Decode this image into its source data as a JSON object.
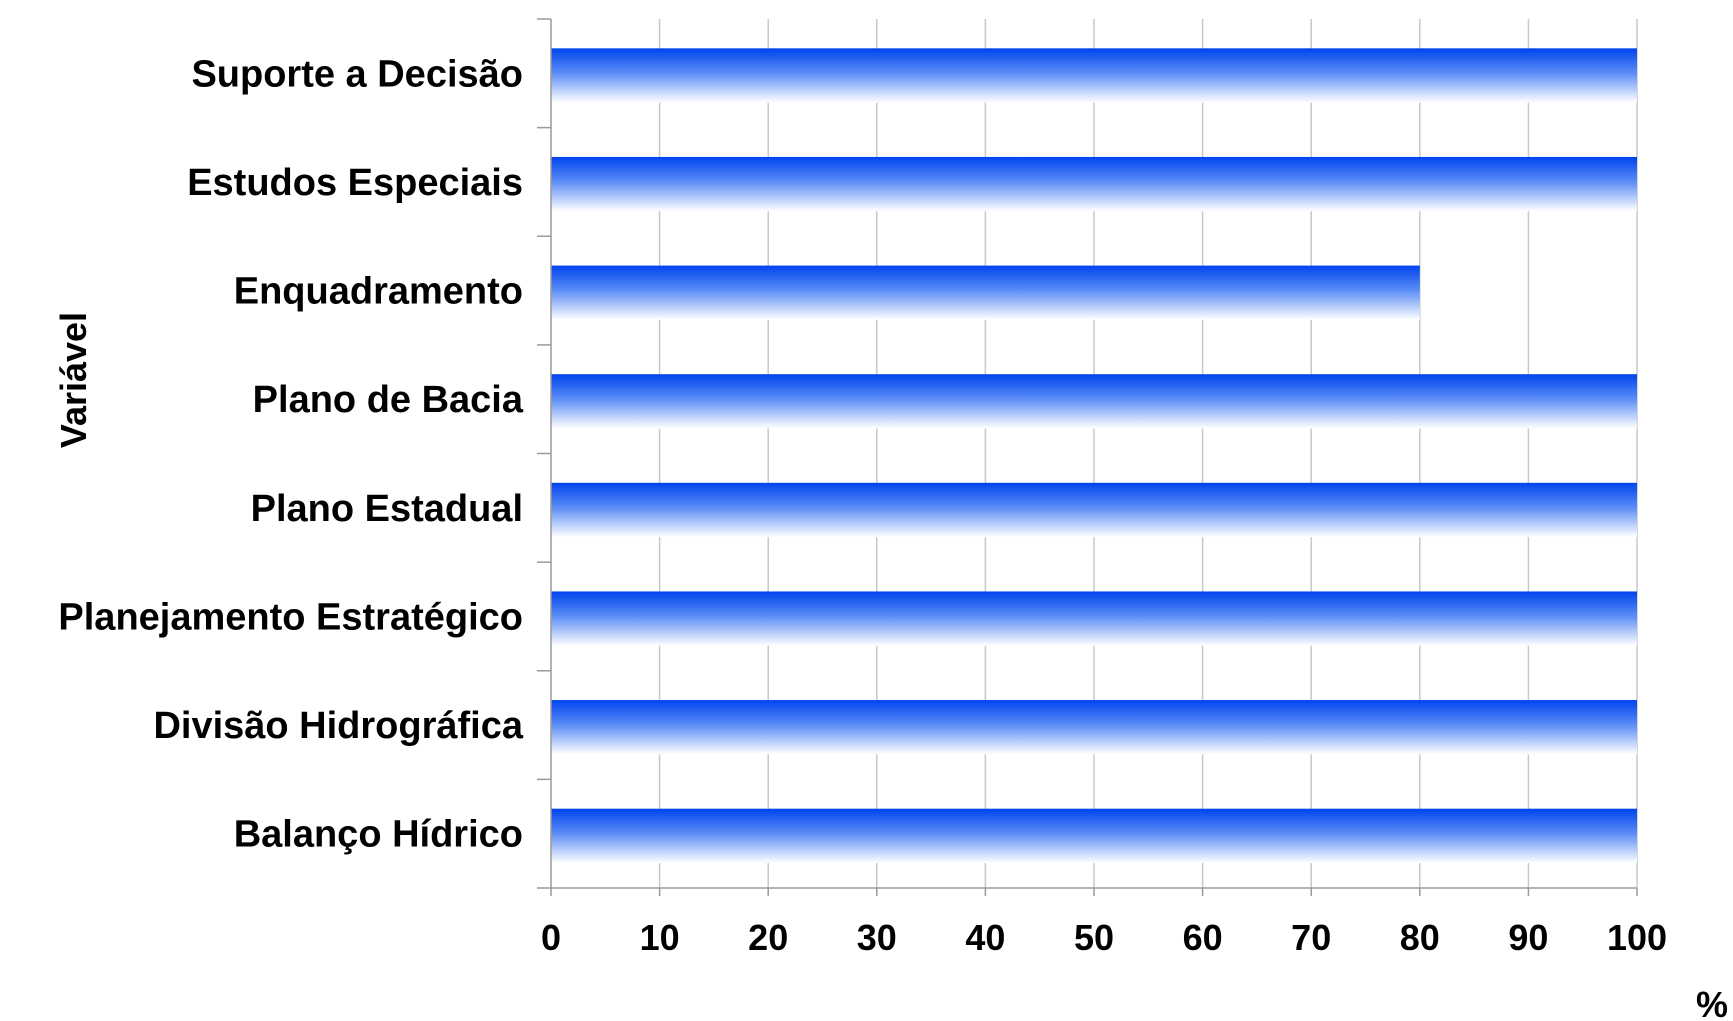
{
  "chart_data": {
    "type": "bar",
    "orientation": "horizontal",
    "categories": [
      "Suporte a Decisão",
      "Estudos Especiais",
      "Enquadramento",
      "Plano de Bacia",
      "Plano Estadual",
      "Planejamento Estratégico",
      "Divisão Hidrográfica",
      "Balanço Hídrico"
    ],
    "values": [
      100,
      100,
      80,
      100,
      100,
      100,
      100,
      100
    ],
    "xlabel": "%",
    "ylabel": "Variável",
    "xlim": [
      0,
      100
    ],
    "xticks": [
      0,
      10,
      20,
      30,
      40,
      50,
      60,
      70,
      80,
      90,
      100
    ],
    "grid": "vertical",
    "legend": "none",
    "colors": {
      "bar_top": "#0044ee",
      "bar_bottom": "#ffffff",
      "grid": "#c8c8c8"
    }
  }
}
